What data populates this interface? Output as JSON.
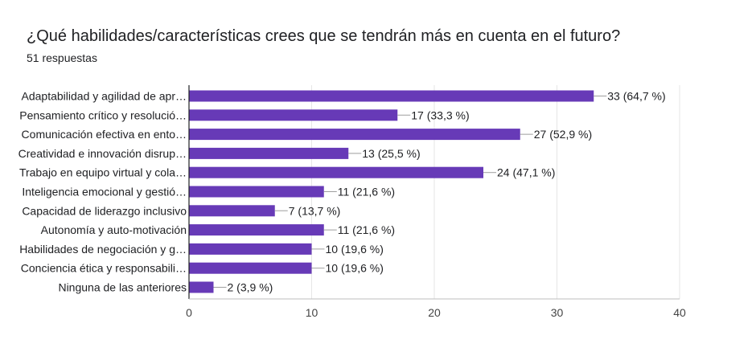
{
  "header": {
    "title": "¿Qué habilidades/características crees que se tendrán más en cuenta en el futuro?",
    "subtitle": "51 respuestas"
  },
  "colors": {
    "bar": "#673ab7",
    "grid": "#e6e6e6",
    "axis": "#202124",
    "connector": "#9e9e9e"
  },
  "chart_data": {
    "type": "bar",
    "orientation": "horizontal",
    "title": "¿Qué habilidades/características crees que se tendrán más en cuenta en el futuro?",
    "subtitle": "51 respuestas",
    "categories": [
      "Adaptabilidad y agilidad de apr…",
      "Pensamiento crítico y resolució…",
      "Comunicación efectiva en ento…",
      "Creatividad e innovación disrup…",
      "Trabajo en equipo virtual y cola…",
      "Inteligencia emocional y gestió…",
      "Capacidad de liderazgo inclusivo",
      "Autonomía y auto-motivación",
      "Habilidades de negociación y g…",
      "Conciencia ética y responsabili…",
      "Ninguna de las anteriores"
    ],
    "values": [
      33,
      17,
      27,
      13,
      24,
      11,
      7,
      11,
      10,
      10,
      2
    ],
    "value_labels": [
      "33 (64,7 %)",
      "17 (33,3 %)",
      "27 (52,9 %)",
      "13 (25,5 %)",
      "24 (47,1 %)",
      "11 (21,6 %)",
      "7 (13,7 %)",
      "11 (21,6 %)",
      "10 (19,6 %)",
      "10 (19,6 %)",
      "2 (3,9 %)"
    ],
    "xlim": [
      0,
      40
    ],
    "xticks": [
      0,
      10,
      20,
      30,
      40
    ],
    "grid": true,
    "legend": "none"
  }
}
